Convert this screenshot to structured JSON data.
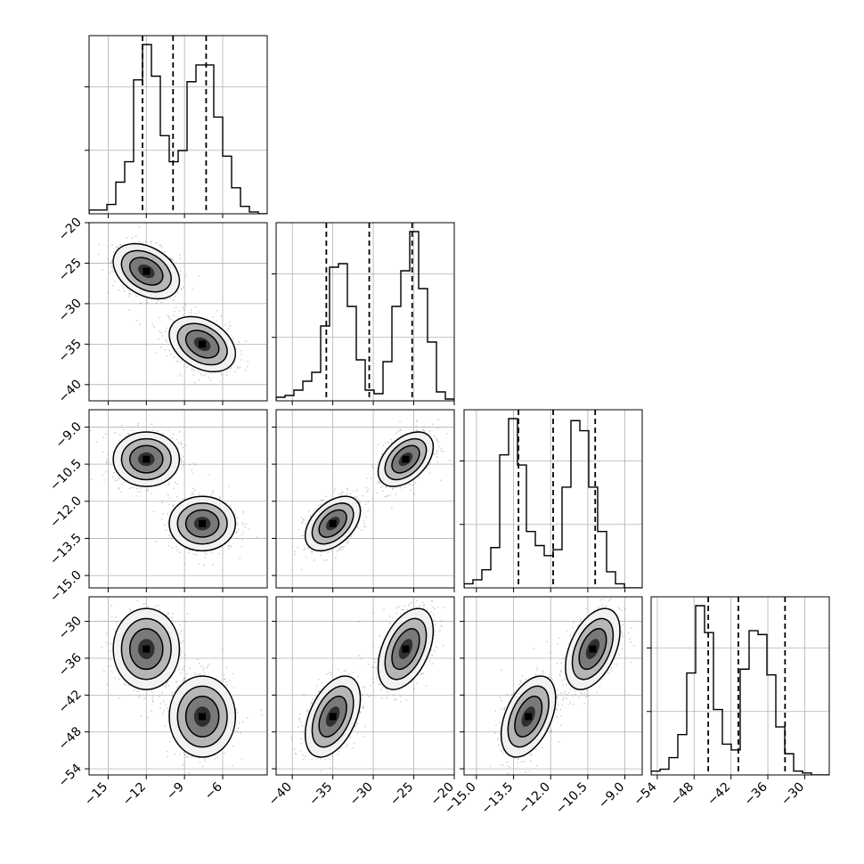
{
  "chart_data": {
    "type": "corner",
    "title": "",
    "grid": true,
    "colors": {
      "background": "#ffffff",
      "frame": "#000000",
      "grid": "#b0b0b0",
      "histogram": "#000000",
      "quantile_line": "#000000",
      "samples": "#7a7a7a",
      "density_dark": "#000000",
      "density_light": "#f2f2f2"
    },
    "parameters": [
      {
        "index": 0,
        "range": [
          -16.5,
          -2.5
        ],
        "ticks": [
          -15,
          -12,
          -9,
          -6
        ],
        "tick_labels": [
          "−15",
          "−12",
          "−9",
          "−6"
        ],
        "quantiles": [
          -12.3,
          -9.9,
          -7.3
        ],
        "histogram": [
          0.02,
          0.02,
          0.05,
          0.17,
          0.28,
          0.72,
          0.91,
          0.74,
          0.42,
          0.28,
          0.34,
          0.71,
          0.8,
          0.8,
          0.52,
          0.31,
          0.14,
          0.04,
          0.01,
          0.0
        ]
      },
      {
        "index": 1,
        "range": [
          -42.0,
          -20.0
        ],
        "ticks": [
          -40,
          -35,
          -30,
          -25,
          -20
        ],
        "tick_labels": [
          "−40",
          "−35",
          "−30",
          "−25",
          "−20"
        ],
        "quantiles": [
          -35.8,
          -30.5,
          -25.2
        ],
        "histogram": [
          0.02,
          0.03,
          0.06,
          0.11,
          0.16,
          0.42,
          0.75,
          0.77,
          0.53,
          0.23,
          0.06,
          0.04,
          0.22,
          0.53,
          0.73,
          0.95,
          0.63,
          0.33,
          0.05,
          0.01
        ]
      },
      {
        "index": 2,
        "range": [
          -15.5,
          -8.3
        ],
        "ticks": [
          -15.0,
          -13.5,
          -12.0,
          -10.5,
          -9.0
        ],
        "tick_labels": [
          "−15.0",
          "−13.5",
          "−12.0",
          "−10.5",
          "−9.0"
        ],
        "quantiles": [
          -13.3,
          -11.9,
          -10.2
        ],
        "histogram": [
          0.02,
          0.04,
          0.09,
          0.2,
          0.66,
          0.84,
          0.61,
          0.28,
          0.21,
          0.16,
          0.19,
          0.5,
          0.83,
          0.78,
          0.5,
          0.28,
          0.08,
          0.02,
          0.0,
          0.0
        ]
      },
      {
        "index": 3,
        "range": [
          -55.0,
          -26.0
        ],
        "ticks": [
          -54,
          -48,
          -42,
          -36,
          -30
        ],
        "tick_labels": [
          "−54",
          "−48",
          "−42",
          "−36",
          "−30"
        ],
        "quantiles": [
          -45.7,
          -40.8,
          -33.2
        ],
        "histogram": [
          0.02,
          0.03,
          0.09,
          0.21,
          0.53,
          0.88,
          0.74,
          0.34,
          0.16,
          0.13,
          0.55,
          0.75,
          0.73,
          0.52,
          0.25,
          0.11,
          0.02,
          0.01,
          0.0,
          0.0
        ]
      }
    ],
    "modes": [
      {
        "centers": [
          -12.0,
          -26.0,
          -10.3,
          -34.5
        ],
        "std": [
          1.3,
          1.7,
          0.55,
          3.3
        ]
      },
      {
        "centers": [
          -7.6,
          -35.0,
          -12.9,
          -45.5
        ],
        "std": [
          1.3,
          1.7,
          0.55,
          3.3
        ]
      }
    ],
    "correlations": [
      {
        "pair": [
          0,
          1
        ],
        "value": -0.35
      },
      {
        "pair": [
          0,
          2
        ],
        "value": 0.0
      },
      {
        "pair": [
          0,
          3
        ],
        "value": 0.0
      },
      {
        "pair": [
          1,
          2
        ],
        "value": 0.45
      },
      {
        "pair": [
          1,
          3
        ],
        "value": 0.45
      },
      {
        "pair": [
          2,
          3
        ],
        "value": 0.45
      }
    ]
  }
}
